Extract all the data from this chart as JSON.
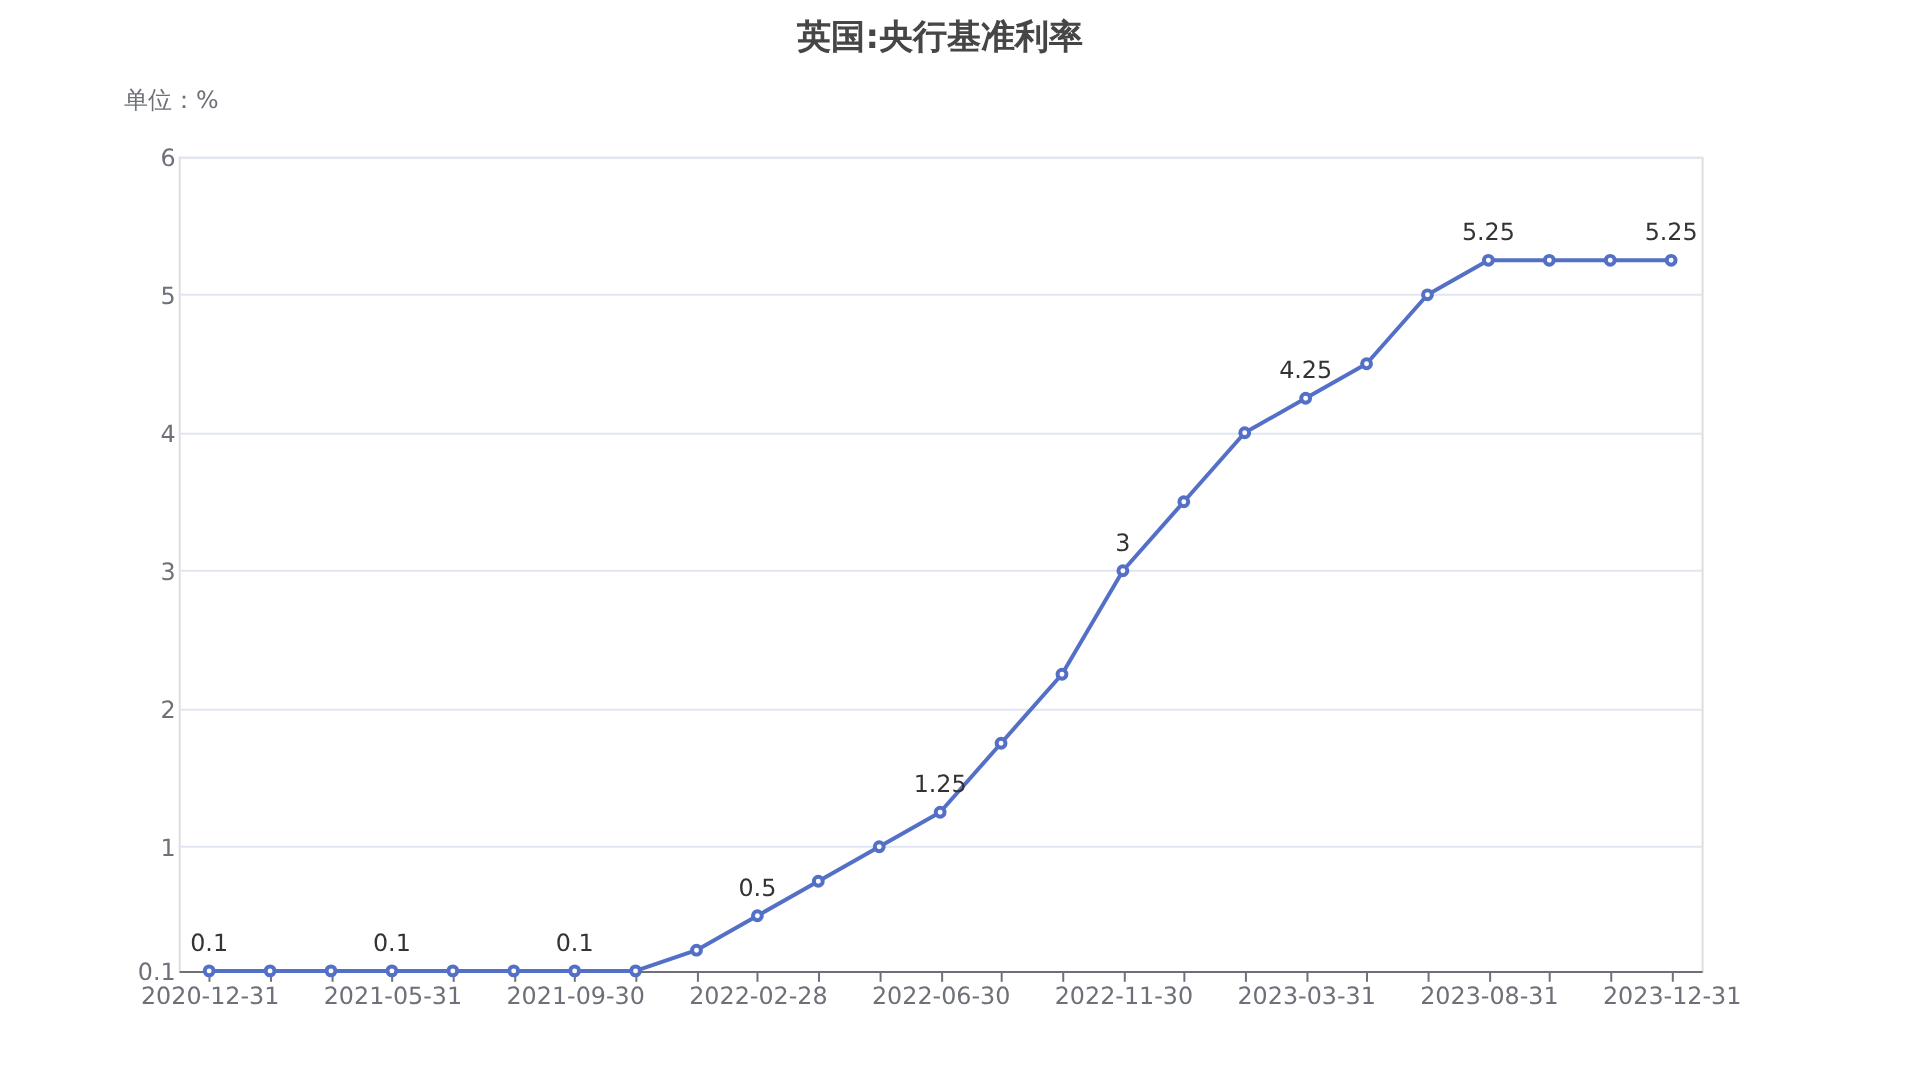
{
  "chart_data": {
    "type": "line",
    "title": "英国:央行基准利率",
    "ylabel": "单位：%",
    "categories": [
      "2020-12-31",
      null,
      null,
      "2021-05-31",
      null,
      null,
      "2021-09-30",
      null,
      null,
      "2022-02-28",
      null,
      null,
      "2022-06-30",
      null,
      null,
      "2022-11-30",
      null,
      null,
      "2023-03-31",
      null,
      null,
      "2023-08-31",
      null,
      null,
      "2023-12-31"
    ],
    "series": [
      {
        "color": "#5470c6",
        "values": [
          0.1,
          0.1,
          0.1,
          0.1,
          0.1,
          0.1,
          0.1,
          0.1,
          0.25,
          0.5,
          0.75,
          1.0,
          1.25,
          1.75,
          2.25,
          3.0,
          3.5,
          4.0,
          4.25,
          4.5,
          5.0,
          5.25,
          5.25,
          5.25,
          5.25
        ],
        "value_labels": [
          "0.1",
          null,
          null,
          "0.1",
          null,
          null,
          "0.1",
          null,
          null,
          "0.5",
          null,
          null,
          "1.25",
          null,
          null,
          "3",
          null,
          null,
          "4.25",
          null,
          null,
          "5.25",
          null,
          null,
          "5.25"
        ]
      }
    ],
    "ylim": [
      0.1,
      6
    ],
    "yticks": [
      0.1,
      1,
      2,
      3,
      4,
      5,
      6
    ],
    "grid": "y",
    "marker": "circle",
    "line_style": "solid"
  }
}
